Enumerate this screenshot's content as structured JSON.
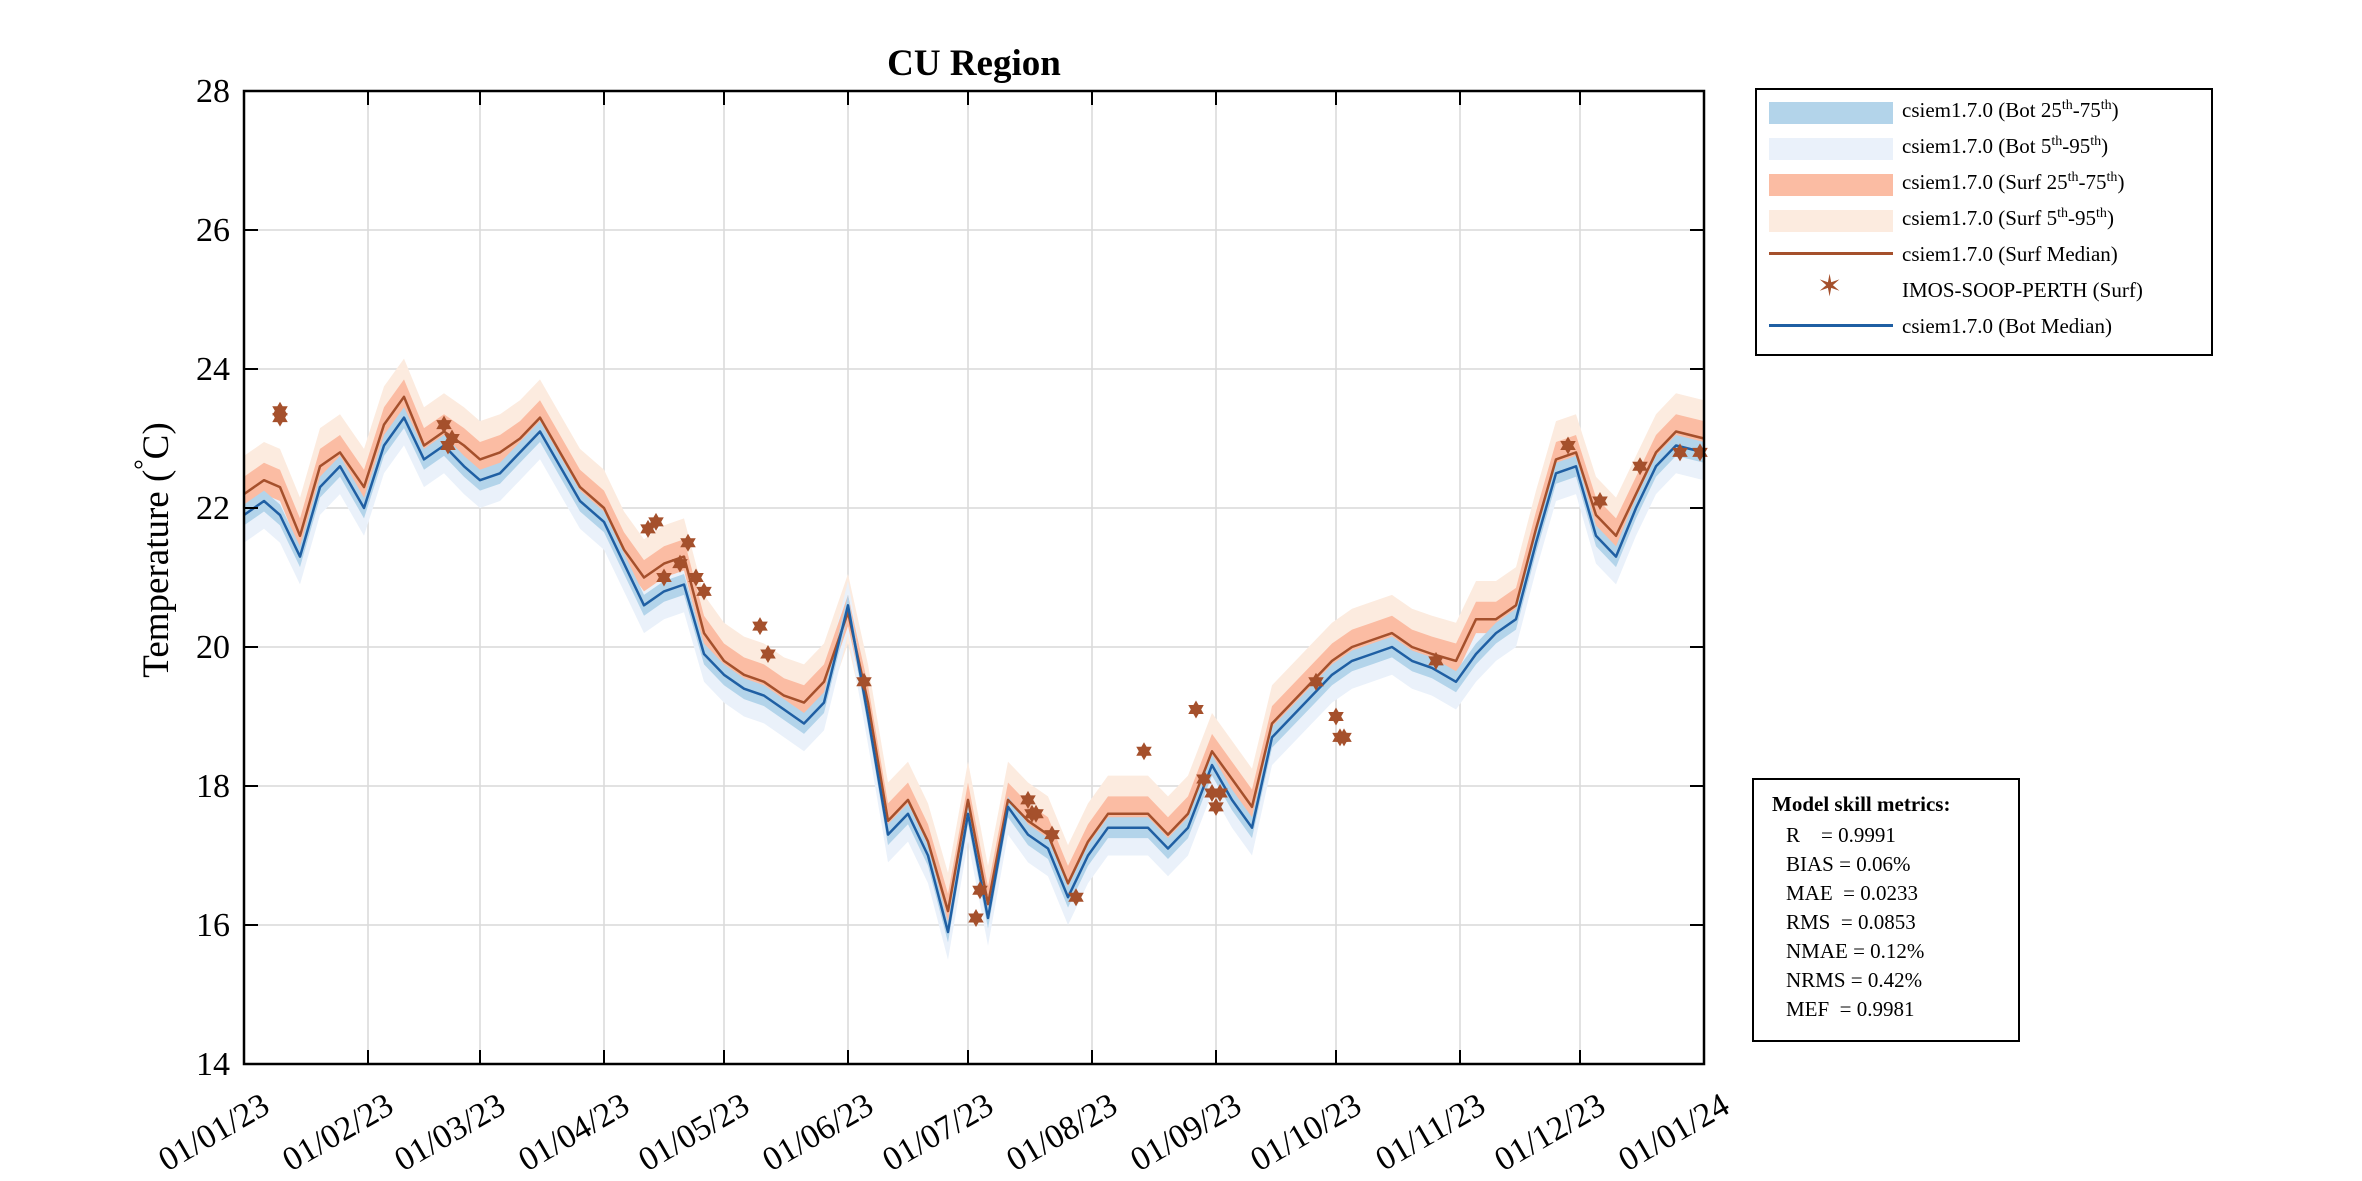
{
  "chart_data": {
    "type": "line",
    "title": "CU Region",
    "ylabel": "Temperature (°C)",
    "xlabel": "",
    "ylim": [
      14,
      28
    ],
    "yticks": [
      14,
      16,
      18,
      20,
      22,
      24,
      26,
      28
    ],
    "xlim": [
      "2023-01-01",
      "2024-01-01"
    ],
    "xtick_labels": [
      "01/01/23",
      "01/02/23",
      "01/03/23",
      "01/04/23",
      "01/05/23",
      "01/06/23",
      "01/07/23",
      "01/08/23",
      "01/09/23",
      "01/10/23",
      "01/11/23",
      "01/12/23",
      "01/01/24"
    ],
    "grid": true,
    "legend_position": "outside-top-right",
    "colors": {
      "bot_25_75": "#b3d4ea",
      "bot_5_95": "#eaf1fa",
      "surf_25_75": "#fbbca3",
      "surf_5_95": "#fcebdf",
      "surf_median": "#a5502c",
      "obs": "#a5502c",
      "bot_median": "#1f5fa3"
    },
    "legend": [
      {
        "key": "bot_25_75",
        "type": "band",
        "label": "csiem1.7.0 (Bot 25",
        "sup1": "th",
        "mid": "-75",
        "sup2": "th",
        "end": ")"
      },
      {
        "key": "bot_5_95",
        "type": "band",
        "label": "csiem1.7.0 (Bot 5",
        "sup1": "th",
        "mid": "-95",
        "sup2": "th",
        "end": ")"
      },
      {
        "key": "surf_25_75",
        "type": "band",
        "label": "csiem1.7.0 (Surf 25",
        "sup1": "th",
        "mid": "-75",
        "sup2": "th",
        "end": ")"
      },
      {
        "key": "surf_5_95",
        "type": "band",
        "label": "csiem1.7.0 (Surf 5",
        "sup1": "th",
        "mid": "-95",
        "sup2": "th",
        "end": ")"
      },
      {
        "key": "surf_median",
        "type": "line",
        "label": "csiem1.7.0 (Surf Median)",
        "sup1": "",
        "mid": "",
        "sup2": "",
        "end": ""
      },
      {
        "key": "obs",
        "type": "marker",
        "label": "IMOS-SOOP-PERTH (Surf)",
        "sup1": "",
        "mid": "",
        "sup2": "",
        "end": ""
      },
      {
        "key": "bot_median",
        "type": "line",
        "label": "csiem1.7.0 (Bot Median)",
        "sup1": "",
        "mid": "",
        "sup2": "",
        "end": ""
      }
    ],
    "series": [
      {
        "name": "csiem1.7.0 (Surf Median)",
        "x": [
          "2023-01-01",
          "2023-01-06",
          "2023-01-10",
          "2023-01-15",
          "2023-01-20",
          "2023-01-25",
          "2023-01-31",
          "2023-02-05",
          "2023-02-10",
          "2023-02-15",
          "2023-02-20",
          "2023-02-25",
          "2023-03-01",
          "2023-03-06",
          "2023-03-11",
          "2023-03-16",
          "2023-03-21",
          "2023-03-26",
          "2023-04-01",
          "2023-04-06",
          "2023-04-11",
          "2023-04-16",
          "2023-04-21",
          "2023-04-26",
          "2023-05-01",
          "2023-05-06",
          "2023-05-11",
          "2023-05-16",
          "2023-05-21",
          "2023-05-26",
          "2023-06-01",
          "2023-06-06",
          "2023-06-11",
          "2023-06-16",
          "2023-06-21",
          "2023-06-26",
          "2023-07-01",
          "2023-07-06",
          "2023-07-11",
          "2023-07-16",
          "2023-07-21",
          "2023-07-26",
          "2023-07-31",
          "2023-08-05",
          "2023-08-10",
          "2023-08-15",
          "2023-08-20",
          "2023-08-25",
          "2023-08-31",
          "2023-09-05",
          "2023-09-10",
          "2023-09-15",
          "2023-09-20",
          "2023-09-25",
          "2023-09-30",
          "2023-10-05",
          "2023-10-10",
          "2023-10-15",
          "2023-10-20",
          "2023-10-25",
          "2023-10-31",
          "2023-11-05",
          "2023-11-10",
          "2023-11-15",
          "2023-11-20",
          "2023-11-25",
          "2023-11-30",
          "2023-12-05",
          "2023-12-10",
          "2023-12-15",
          "2023-12-20",
          "2023-12-25",
          "2024-01-01"
        ],
        "values": [
          22.2,
          22.4,
          22.3,
          21.6,
          22.6,
          22.8,
          22.3,
          23.2,
          23.6,
          22.9,
          23.1,
          22.9,
          22.7,
          22.8,
          23.0,
          23.3,
          22.8,
          22.3,
          22.0,
          21.4,
          21.0,
          21.2,
          21.3,
          20.2,
          19.8,
          19.6,
          19.5,
          19.3,
          19.2,
          19.5,
          20.5,
          19.2,
          17.5,
          17.8,
          17.2,
          16.2,
          17.8,
          16.3,
          17.8,
          17.5,
          17.3,
          16.6,
          17.2,
          17.6,
          17.6,
          17.6,
          17.3,
          17.6,
          18.5,
          18.1,
          17.7,
          18.9,
          19.2,
          19.5,
          19.8,
          20.0,
          20.1,
          20.2,
          20.0,
          19.9,
          19.8,
          20.4,
          20.4,
          20.6,
          21.7,
          22.7,
          22.8,
          21.9,
          21.6,
          22.2,
          22.8,
          23.1,
          23.0
        ]
      },
      {
        "name": "csiem1.7.0 (Bot Median)",
        "x": [
          "2023-01-01",
          "2023-01-06",
          "2023-01-10",
          "2023-01-15",
          "2023-01-20",
          "2023-01-25",
          "2023-01-31",
          "2023-02-05",
          "2023-02-10",
          "2023-02-15",
          "2023-02-20",
          "2023-02-25",
          "2023-03-01",
          "2023-03-06",
          "2023-03-11",
          "2023-03-16",
          "2023-03-21",
          "2023-03-26",
          "2023-04-01",
          "2023-04-06",
          "2023-04-11",
          "2023-04-16",
          "2023-04-21",
          "2023-04-26",
          "2023-05-01",
          "2023-05-06",
          "2023-05-11",
          "2023-05-16",
          "2023-05-21",
          "2023-05-26",
          "2023-06-01",
          "2023-06-06",
          "2023-06-11",
          "2023-06-16",
          "2023-06-21",
          "2023-06-26",
          "2023-07-01",
          "2023-07-06",
          "2023-07-11",
          "2023-07-16",
          "2023-07-21",
          "2023-07-26",
          "2023-07-31",
          "2023-08-05",
          "2023-08-10",
          "2023-08-15",
          "2023-08-20",
          "2023-08-25",
          "2023-08-31",
          "2023-09-05",
          "2023-09-10",
          "2023-09-15",
          "2023-09-20",
          "2023-09-25",
          "2023-09-30",
          "2023-10-05",
          "2023-10-10",
          "2023-10-15",
          "2023-10-20",
          "2023-10-25",
          "2023-10-31",
          "2023-11-05",
          "2023-11-10",
          "2023-11-15",
          "2023-11-20",
          "2023-11-25",
          "2023-11-30",
          "2023-12-05",
          "2023-12-10",
          "2023-12-15",
          "2023-12-20",
          "2023-12-25",
          "2024-01-01"
        ],
        "values": [
          21.9,
          22.1,
          21.9,
          21.3,
          22.3,
          22.6,
          22.0,
          22.9,
          23.3,
          22.7,
          22.9,
          22.6,
          22.4,
          22.5,
          22.8,
          23.1,
          22.6,
          22.1,
          21.8,
          21.2,
          20.6,
          20.8,
          20.9,
          19.9,
          19.6,
          19.4,
          19.3,
          19.1,
          18.9,
          19.2,
          20.6,
          19.0,
          17.3,
          17.6,
          17.0,
          15.9,
          17.6,
          16.1,
          17.7,
          17.3,
          17.1,
          16.4,
          17.0,
          17.4,
          17.4,
          17.4,
          17.1,
          17.4,
          18.3,
          17.8,
          17.4,
          18.7,
          19.0,
          19.3,
          19.6,
          19.8,
          19.9,
          20.0,
          19.8,
          19.7,
          19.5,
          19.9,
          20.2,
          20.4,
          21.5,
          22.5,
          22.6,
          21.6,
          21.3,
          22.0,
          22.6,
          22.9,
          22.8
        ]
      },
      {
        "name": "IMOS-SOOP-PERTH (Surf)",
        "x": [
          "2023-01-10",
          "2023-01-10",
          "2023-02-20",
          "2023-02-21",
          "2023-02-22",
          "2023-04-12",
          "2023-04-14",
          "2023-04-16",
          "2023-04-20",
          "2023-04-22",
          "2023-04-24",
          "2023-04-26",
          "2023-05-10",
          "2023-05-12",
          "2023-06-05",
          "2023-07-03",
          "2023-07-04",
          "2023-07-16",
          "2023-07-17",
          "2023-07-18",
          "2023-07-22",
          "2023-07-28",
          "2023-08-14",
          "2023-08-27",
          "2023-08-29",
          "2023-08-31",
          "2023-09-01",
          "2023-09-02",
          "2023-09-26",
          "2023-10-01",
          "2023-10-02",
          "2023-10-03",
          "2023-10-26",
          "2023-11-28",
          "2023-12-06",
          "2023-12-16",
          "2023-12-26",
          "2023-12-31"
        ],
        "values": [
          23.4,
          23.3,
          23.2,
          22.9,
          23.0,
          21.7,
          21.8,
          21.0,
          21.2,
          21.5,
          21.0,
          20.8,
          20.3,
          19.9,
          19.5,
          16.1,
          16.5,
          17.8,
          17.6,
          17.6,
          17.3,
          16.4,
          18.5,
          19.1,
          18.1,
          17.9,
          17.7,
          17.9,
          19.5,
          19.0,
          18.7,
          18.7,
          19.8,
          22.9,
          22.1,
          22.6,
          22.8,
          22.8
        ]
      }
    ]
  },
  "metrics": {
    "title": "Model skill metrics:",
    "lines": [
      "R    = 0.9991",
      "BIAS = 0.06%",
      "MAE  = 0.0233",
      "RMS  = 0.0853",
      "NMAE = 0.12%",
      "NRMS = 0.42%",
      "MEF  = 0.9981"
    ]
  }
}
